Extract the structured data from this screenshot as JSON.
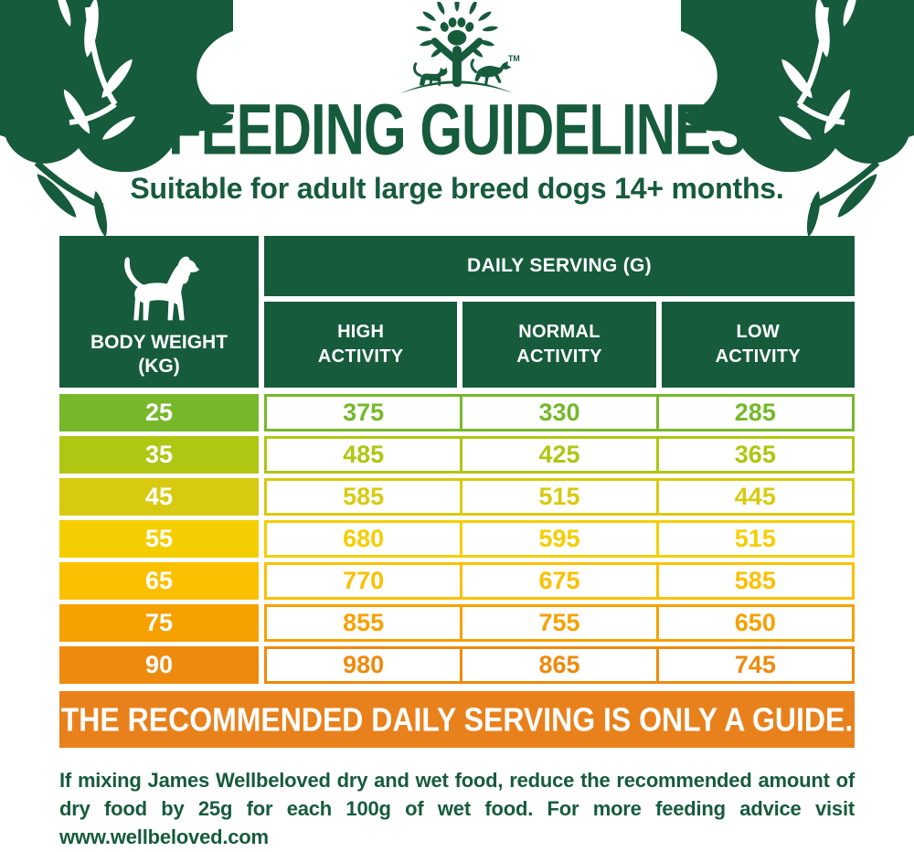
{
  "brand": {
    "logo": "james-wellbeloved-tree-paw-logo",
    "trademark": "TM"
  },
  "header": {
    "title": "FEEDING GUIDELINES",
    "subtitle": "Suitable for adult large breed dogs 14+ months."
  },
  "table": {
    "body_weight_header": "BODY WEIGHT\n(KG)",
    "daily_serving_header": "DAILY SERVING (G)",
    "activity_columns": [
      "HIGH\nACTIVITY",
      "NORMAL\nACTIVITY",
      "LOW\nACTIVITY"
    ],
    "rows": [
      {
        "weight": "25",
        "high": "375",
        "normal": "330",
        "low": "285",
        "color": "#76B82A"
      },
      {
        "weight": "35",
        "high": "485",
        "normal": "425",
        "low": "365",
        "color": "#AFC613"
      },
      {
        "weight": "45",
        "high": "585",
        "normal": "515",
        "low": "445",
        "color": "#D8CA10"
      },
      {
        "weight": "55",
        "high": "680",
        "normal": "595",
        "low": "515",
        "color": "#F5CE00"
      },
      {
        "weight": "65",
        "high": "770",
        "normal": "675",
        "low": "585",
        "color": "#FBC000"
      },
      {
        "weight": "75",
        "high": "855",
        "normal": "755",
        "low": "650",
        "color": "#F6A100"
      },
      {
        "weight": "90",
        "high": "980",
        "normal": "865",
        "low": "745",
        "color": "#EE8A0E"
      }
    ]
  },
  "banner": {
    "text": "THE RECOMMENDED DAILY SERVING IS ONLY A GUIDE."
  },
  "footer": {
    "note": "If mixing James Wellbeloved dry and wet food, reduce the recommended amount of dry food by 25g for each 100g of wet food. For more feeding advice visit www.wellbeloved.com"
  },
  "colors": {
    "brand_green": "#175B3D",
    "banner_orange": "#E8811C",
    "cell_background": "#FFFFFF"
  },
  "chart_data": {
    "type": "table",
    "title": "FEEDING GUIDELINES",
    "subtitle": "Suitable for adult large breed dogs 14+ months.",
    "units": "DAILY SERVING (G)",
    "columns": [
      "BODY WEIGHT (KG)",
      "HIGH ACTIVITY",
      "NORMAL ACTIVITY",
      "LOW ACTIVITY"
    ],
    "categories": [
      25,
      35,
      45,
      55,
      65,
      75,
      90
    ],
    "series": [
      {
        "name": "HIGH ACTIVITY",
        "values": [
          375,
          485,
          585,
          680,
          770,
          855,
          980
        ]
      },
      {
        "name": "NORMAL ACTIVITY",
        "values": [
          330,
          425,
          515,
          595,
          675,
          755,
          865
        ]
      },
      {
        "name": "LOW ACTIVITY",
        "values": [
          285,
          365,
          445,
          515,
          585,
          650,
          745
        ]
      }
    ],
    "row_colors": [
      "#76B82A",
      "#AFC613",
      "#D8CA10",
      "#F5CE00",
      "#FBC000",
      "#F6A100",
      "#EE8A0E"
    ],
    "note": "THE RECOMMENDED DAILY SERVING IS ONLY A GUIDE.",
    "legend_position": "none",
    "grid": false
  }
}
